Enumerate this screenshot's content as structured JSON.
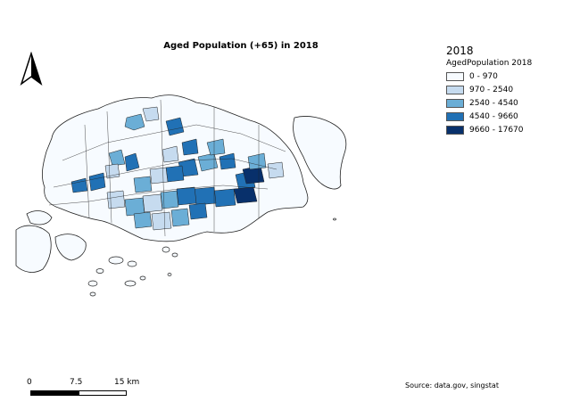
{
  "title": "Aged Population (+65) in 2018",
  "legend": {
    "year": "2018",
    "field": "AgedPopulation 2018",
    "classes": [
      {
        "label": "0 - 970",
        "color": "#f7fbff"
      },
      {
        "label": "970 - 2540",
        "color": "#c6dbef"
      },
      {
        "label": "2540 - 4540",
        "color": "#6baed6"
      },
      {
        "label": "4540 - 9660",
        "color": "#2171b5"
      },
      {
        "label": "9660 - 17670",
        "color": "#08306b"
      }
    ]
  },
  "scalebar": {
    "labels": [
      "0",
      "7.5",
      "15 km"
    ]
  },
  "source": "Source: data.gov, singstat",
  "icons": {
    "north_arrow": "north-arrow-icon"
  }
}
